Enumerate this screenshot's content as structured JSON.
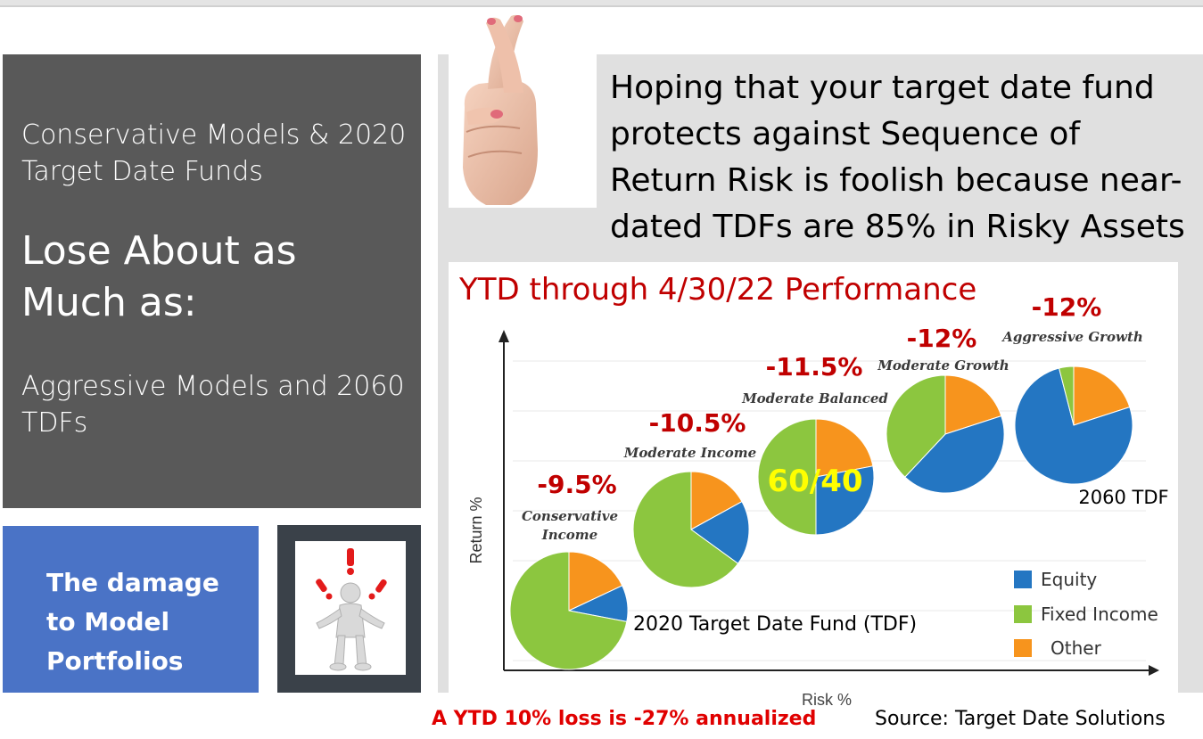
{
  "left_panel": {
    "line1": "Conservative Models & 2020 Target Date Funds",
    "line2": "Lose About as Much as:",
    "line3": "Aggressive Models and 2060 TDFs"
  },
  "callout": {
    "text": "The damage to Model Portfolios",
    "icon": "figure-with-exclamations-icon"
  },
  "headline": "Hoping that your target date fund protects against Sequence of Return Risk is foolish because near-dated TDFs are 85% in Risky Assets",
  "finger_image": "crossed-fingers-icon",
  "colors": {
    "equity": "#2476c2",
    "fixed_income": "#8cc63f",
    "other": "#f7941d",
    "returns": "#c00000",
    "sixty_forty": "#ffff00"
  },
  "chart_data": {
    "type": "pie",
    "title": "YTD through 4/30/22 Performance",
    "xlabel": "Risk %",
    "ylabel": "Return %",
    "legend_position": "bottom-right",
    "legend": [
      "Equity",
      "Fixed Income",
      "Other"
    ],
    "pies": [
      {
        "name": "Conservative Income",
        "return_label": "-9.5%",
        "note": "2020 Target Date Fund (TDF)",
        "equity": 10,
        "fixed_income": 72,
        "other": 18
      },
      {
        "name": "Moderate Income",
        "return_label": "-10.5%",
        "note": "",
        "equity": 18,
        "fixed_income": 65,
        "other": 17
      },
      {
        "name": "Moderate Balanced",
        "return_label": "-11.5%",
        "note": "60/40",
        "equity": 28,
        "fixed_income": 50,
        "other": 22
      },
      {
        "name": "Moderate Growth",
        "return_label": "-12%",
        "note": "",
        "equity": 42,
        "fixed_income": 38,
        "other": 20
      },
      {
        "name": "Aggressive Growth",
        "return_label": "-12%",
        "note": "2060 TDF",
        "equity": 76,
        "fixed_income": 4,
        "other": 20
      }
    ]
  },
  "footer": {
    "annualized": "A YTD 10% loss is -27% annualized",
    "source": "Source: Target Date Solutions"
  }
}
